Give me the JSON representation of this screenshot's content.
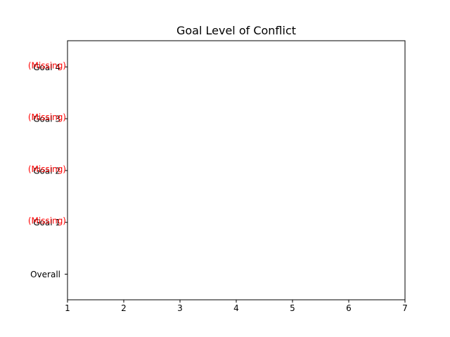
{
  "chart_data": {
    "type": "scatter",
    "title": "Goal Level of Conflict",
    "xlabel": "",
    "ylabel": "",
    "xlim": [
      1,
      7
    ],
    "xticks": [
      "1",
      "2",
      "3",
      "4",
      "5",
      "6",
      "7"
    ],
    "categories": [
      "Overall",
      "Goal 1",
      "Goal 2",
      "Goal 3",
      "Goal 4"
    ],
    "values": [
      null,
      null,
      null,
      null,
      null
    ],
    "annotations": [
      {
        "category": "Goal 1",
        "text": "(Missing)"
      },
      {
        "category": "Goal 2",
        "text": "(Missing)"
      },
      {
        "category": "Goal 3",
        "text": "(Missing)"
      },
      {
        "category": "Goal 4",
        "text": "(Missing)"
      }
    ],
    "annotation_color": "#ff0000",
    "grid": false
  }
}
